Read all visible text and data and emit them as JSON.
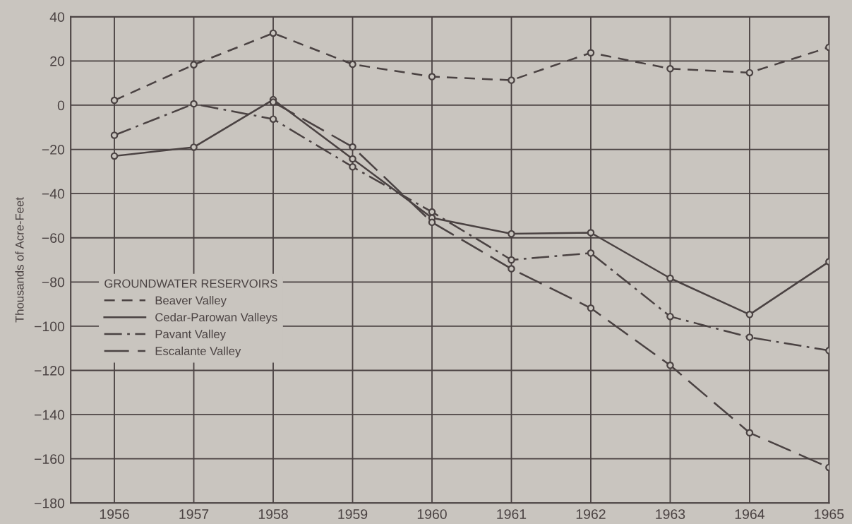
{
  "chart_data": {
    "type": "line",
    "ylabel": "Thousands of Acre-Feet",
    "legend_title": "GROUNDWATER RESERVOIRS",
    "x": [
      1956,
      1957,
      1958,
      1959,
      1960,
      1961,
      1962,
      1963,
      1964,
      1965
    ],
    "series": [
      {
        "name": "Beaver Valley",
        "color": "#4a4242",
        "line_style": "dashed",
        "values": [
          2.2,
          18.3,
          32.6,
          18.5,
          12.9,
          11.3,
          23.7,
          16.5,
          14.7,
          26.2
        ]
      },
      {
        "name": "Cedar-Parowan Valleys",
        "color": "#4a4242",
        "line_style": "solid",
        "values": [
          -23,
          -19,
          2.5,
          -24.3,
          -51,
          -58.2,
          -57.7,
          -78.3,
          -94.7,
          -70.8
        ]
      },
      {
        "name": "Pavant Valley",
        "color": "#4a4242",
        "line_style": "dashdot",
        "values": [
          -13.6,
          0.6,
          -6.3,
          -27.9,
          -48.3,
          -70,
          -66.9,
          -95.6,
          -105,
          -111
        ]
      },
      {
        "name": "Escalante Valley",
        "color": "#4a4242",
        "line_style": "longdash",
        "values": [
          null,
          null,
          1.4,
          -18.9,
          -53,
          -74,
          -91.8,
          -117.7,
          -148.2,
          -163.9
        ]
      }
    ],
    "xlim": [
      1955.45,
      1965
    ],
    "xticks": [
      1956,
      1957,
      1958,
      1959,
      1960,
      1961,
      1962,
      1963,
      1964,
      1965
    ],
    "ylim": [
      -180,
      40
    ],
    "yticks": [
      -180,
      -160,
      -140,
      -120,
      -100,
      -80,
      -60,
      -40,
      -20,
      0,
      20,
      40
    ],
    "grid": true,
    "legend": "center left",
    "marker": "circle"
  }
}
